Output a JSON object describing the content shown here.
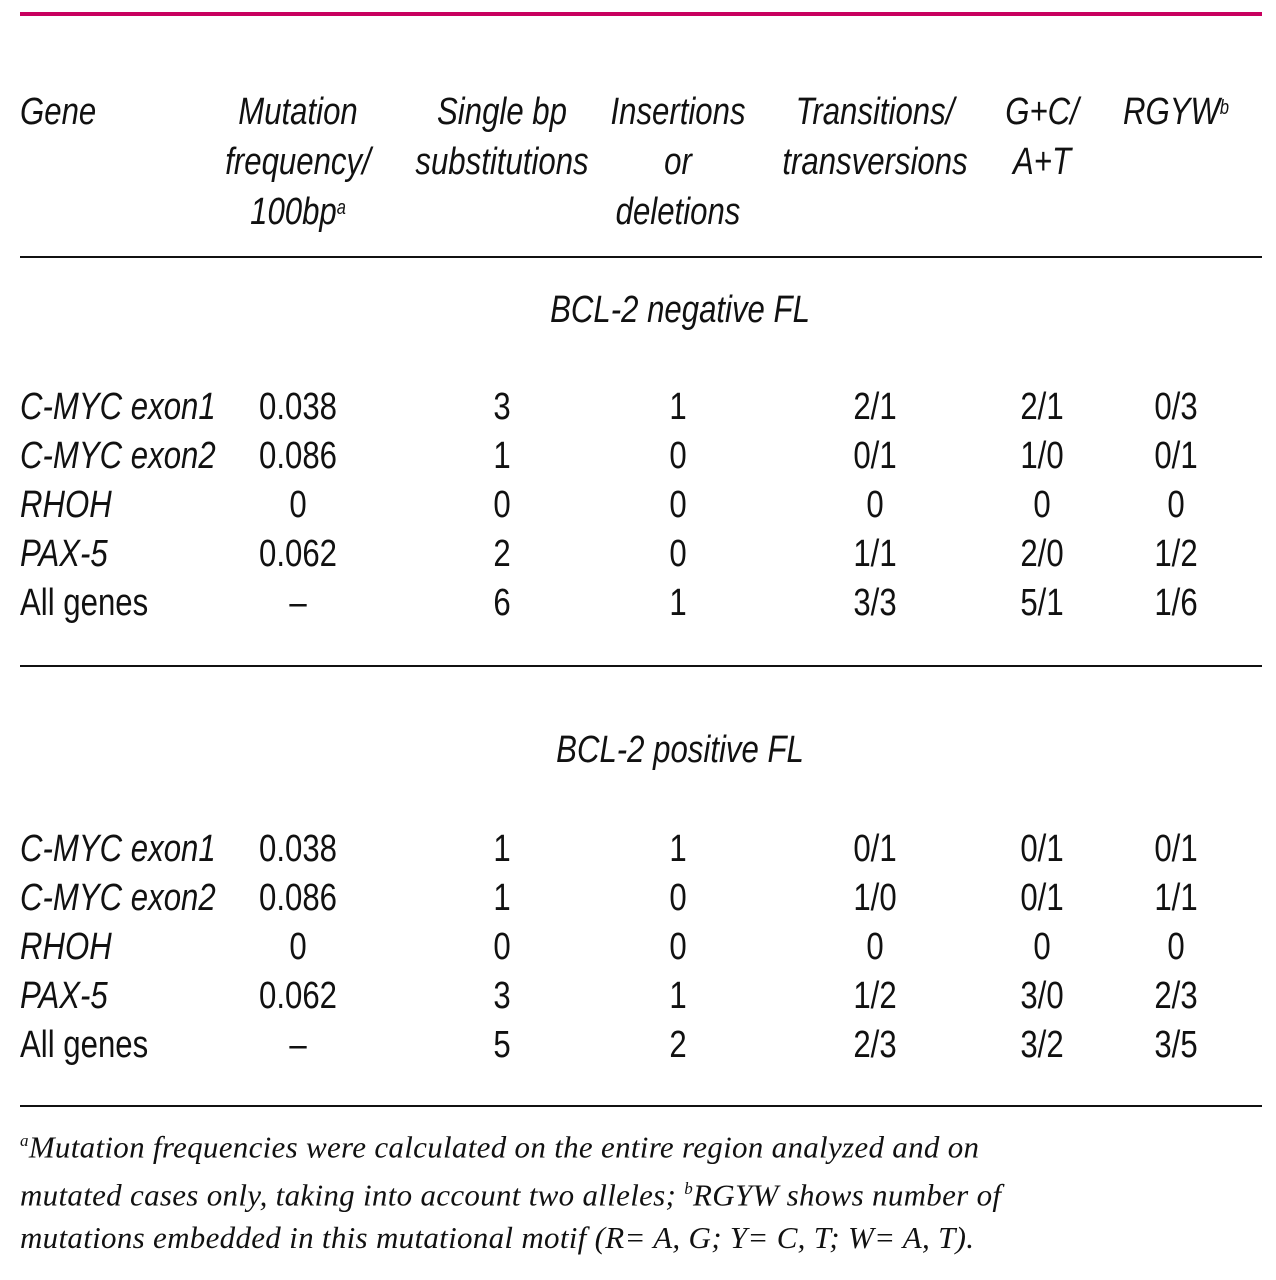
{
  "header": {
    "columns": [
      {
        "lines": [
          "Gene"
        ]
      },
      {
        "lines": [
          "Mutation",
          "frequency/",
          "100bp"
        ],
        "sup": "a"
      },
      {
        "lines": [
          "Single bp",
          "substitutions"
        ]
      },
      {
        "lines": [
          "Insertions",
          "or",
          "deletions"
        ]
      },
      {
        "lines": [
          "Transitions/",
          "transversions"
        ]
      },
      {
        "lines": [
          "G+C/",
          "A+T"
        ]
      },
      {
        "lines": [
          "RGYW"
        ],
        "sup": "b"
      }
    ]
  },
  "sections": [
    {
      "title": "BCL-2 negative FL",
      "rows": [
        [
          "C-MYC exon1",
          "0.038",
          "3",
          "1",
          "2/1",
          "2/1",
          "0/3"
        ],
        [
          "C-MYC exon2",
          "0.086",
          "1",
          "0",
          "0/1",
          "1/0",
          "0/1"
        ],
        [
          "RHOH",
          "0",
          "0",
          "0",
          "0",
          "0",
          "0"
        ],
        [
          "PAX-5",
          "0.062",
          "2",
          "0",
          "1/1",
          "2/0",
          "1/2"
        ],
        [
          "All genes",
          "–",
          "6",
          "1",
          "3/3",
          "5/1",
          "1/6"
        ]
      ]
    },
    {
      "title": "BCL-2 positive FL",
      "rows": [
        [
          "C-MYC exon1",
          "0.038",
          "1",
          "1",
          "0/1",
          "0/1",
          "0/1"
        ],
        [
          "C-MYC exon2",
          "0.086",
          "1",
          "0",
          "1/0",
          "0/1",
          "1/1"
        ],
        [
          "RHOH",
          "0",
          "0",
          "0",
          "0",
          "0",
          "0"
        ],
        [
          "PAX-5",
          "0.062",
          "3",
          "1",
          "1/2",
          "3/0",
          "2/3"
        ],
        [
          "All genes",
          "–",
          "5",
          "2",
          "2/3",
          "3/2",
          "3/5"
        ]
      ]
    }
  ],
  "footnote": {
    "lines": [
      [
        "a",
        "Mutation frequencies were calculated on the entire region analyzed and on"
      ],
      [
        "mutated cases only, taking into account two alleles; ",
        "b",
        "RGYW shows number of"
      ],
      [
        "mutations embedded in this mutational motif (R= A, G; Y= C, T; W= A, T)."
      ]
    ]
  }
}
